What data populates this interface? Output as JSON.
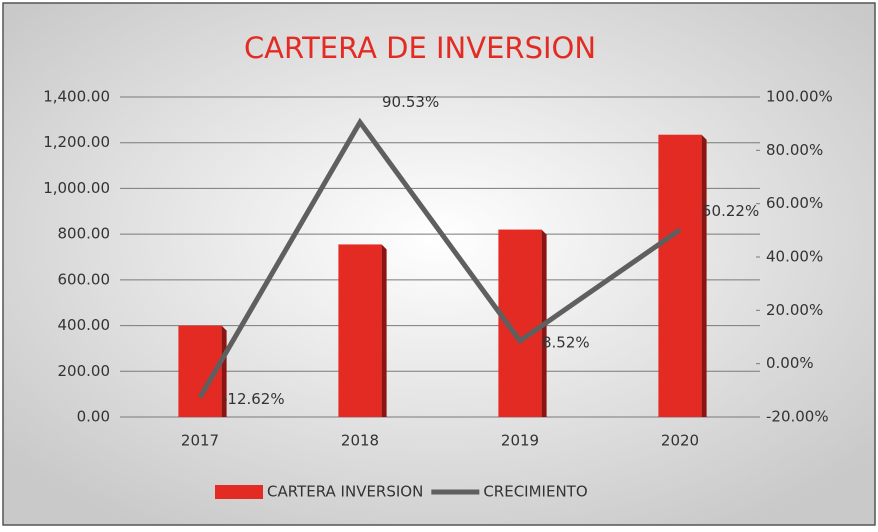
{
  "chart_data": {
    "type": "bar",
    "title": "CARTERA DE INVERSION",
    "categories": [
      "2017",
      "2018",
      "2019",
      "2020"
    ],
    "series": [
      {
        "name": "CARTERA INVERSION",
        "color": "#e32b24",
        "values": [
          400,
          755,
          820,
          1235
        ]
      },
      {
        "name": "CRECIMIENTO",
        "type": "line",
        "axis": "y2",
        "color": "#5f5f5f",
        "values": [
          -12.62,
          90.53,
          8.52,
          50.22
        ],
        "value_labels": [
          "-12.62%",
          "90.53%",
          "8.52%",
          "50.22%"
        ]
      }
    ],
    "ylim": [
      0,
      1400
    ],
    "yticks": [
      {
        "value": 0,
        "label": "0.00"
      },
      {
        "value": 200,
        "label": "200.00"
      },
      {
        "value": 400,
        "label": "400.00"
      },
      {
        "value": 600,
        "label": "600.00"
      },
      {
        "value": 800,
        "label": "800.00"
      },
      {
        "value": 1000,
        "label": "1,000.00"
      },
      {
        "value": 1200,
        "label": "1,200.00"
      },
      {
        "value": 1400,
        "label": "1,400.00"
      }
    ],
    "y2lim": [
      -20,
      100
    ],
    "y2ticks": [
      {
        "value": -20,
        "label": "-20.00%"
      },
      {
        "value": 0,
        "label": "0.00%"
      },
      {
        "value": 20,
        "label": "20.00%"
      },
      {
        "value": 40,
        "label": "40.00%"
      },
      {
        "value": 60,
        "label": "60.00%"
      },
      {
        "value": 80,
        "label": "80.00%"
      },
      {
        "value": 100,
        "label": "100.00%"
      }
    ],
    "grid": true,
    "legend": "bottom"
  }
}
